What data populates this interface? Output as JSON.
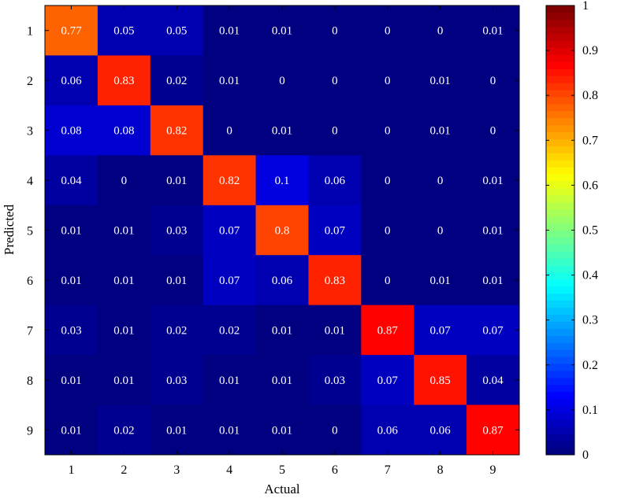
{
  "chart_data": {
    "type": "heatmap",
    "title": "",
    "xlabel": "Actual",
    "ylabel": "Predicted",
    "x_categories": [
      "1",
      "2",
      "3",
      "4",
      "5",
      "6",
      "7",
      "8",
      "9"
    ],
    "y_categories": [
      "1",
      "2",
      "3",
      "4",
      "5",
      "6",
      "7",
      "8",
      "9"
    ],
    "colormap": "jet",
    "clim": [
      0,
      1
    ],
    "colorbar_ticks": [
      "0",
      "0.1",
      "0.2",
      "0.3",
      "0.4",
      "0.5",
      "0.6",
      "0.7",
      "0.8",
      "0.9",
      "1"
    ],
    "colorbar_placement": "right",
    "values": [
      [
        0.77,
        0.05,
        0.05,
        0.01,
        0.01,
        0,
        0,
        0,
        0.01
      ],
      [
        0.06,
        0.83,
        0.02,
        0.01,
        0,
        0,
        0,
        0.01,
        0
      ],
      [
        0.08,
        0.08,
        0.82,
        0,
        0.01,
        0,
        0,
        0.01,
        0
      ],
      [
        0.04,
        0,
        0.01,
        0.82,
        0.1,
        0.06,
        0,
        0,
        0.01
      ],
      [
        0.01,
        0.01,
        0.03,
        0.07,
        0.8,
        0.07,
        0,
        0,
        0.01
      ],
      [
        0.01,
        0.01,
        0.01,
        0.07,
        0.06,
        0.83,
        0,
        0.01,
        0.01
      ],
      [
        0.03,
        0.01,
        0.02,
        0.02,
        0.01,
        0.01,
        0.87,
        0.07,
        0.07
      ],
      [
        0.01,
        0.01,
        0.03,
        0.01,
        0.01,
        0.03,
        0.07,
        0.85,
        0.04
      ],
      [
        0.01,
        0.02,
        0.01,
        0.01,
        0.01,
        0,
        0.06,
        0.06,
        0.87
      ]
    ]
  }
}
